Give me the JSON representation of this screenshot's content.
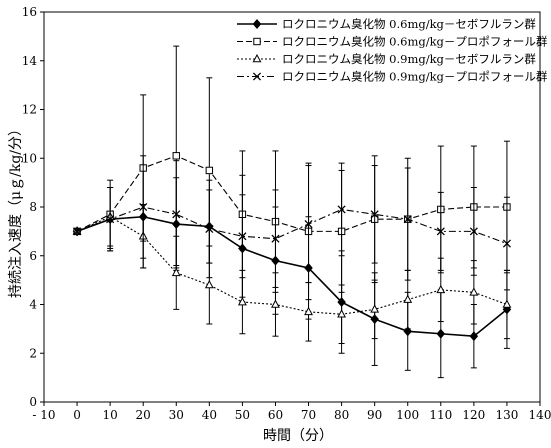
{
  "chart_data": {
    "type": "line",
    "xlabel": "時間（分）",
    "ylabel": "持続注入速度（μｇ/kg/分）",
    "xlim": [
      -10,
      140
    ],
    "ylim": [
      0,
      16
    ],
    "xticks": [
      -10,
      0,
      10,
      20,
      30,
      40,
      50,
      60,
      70,
      80,
      90,
      100,
      110,
      120,
      130,
      140
    ],
    "yticks": [
      0,
      2,
      4,
      6,
      8,
      10,
      12,
      14,
      16
    ],
    "x": [
      0,
      10,
      20,
      30,
      40,
      50,
      60,
      70,
      80,
      90,
      100,
      110,
      120,
      130
    ],
    "legend_position": "top-right",
    "series": [
      {
        "name": "ロクロニウム臭化物 0.6mg/kg－セボフルラン群",
        "marker": "diamond",
        "line": "solid",
        "x": [
          0,
          10,
          20,
          30,
          40,
          50,
          60,
          70,
          80,
          90,
          100,
          110,
          120,
          130
        ],
        "values": [
          7.0,
          7.5,
          7.6,
          7.3,
          7.2,
          6.3,
          5.8,
          5.5,
          4.1,
          3.4,
          2.9,
          2.8,
          2.7,
          3.8
        ],
        "err": [
          0.1,
          1.3,
          2.1,
          1.9,
          1.5,
          2.2,
          2.2,
          2.1,
          2.1,
          1.9,
          1.6,
          1.8,
          1.3,
          1.6
        ]
      },
      {
        "name": "ロクロニウム臭化物 0.6mg/kg－プロポフォール群",
        "marker": "square",
        "line": "dashed",
        "x": [
          0,
          10,
          20,
          30,
          40,
          50,
          60,
          70,
          80,
          90,
          100,
          110,
          120,
          130
        ],
        "values": [
          7.0,
          7.7,
          9.6,
          10.1,
          9.5,
          7.7,
          7.4,
          7.0,
          7.0,
          7.5,
          7.5,
          7.9,
          8.0,
          8.0
        ],
        "err": [
          0.1,
          1.4,
          3.0,
          4.5,
          3.8,
          2.6,
          2.9,
          2.8,
          2.5,
          2.6,
          2.5,
          2.6,
          2.5,
          2.7
        ]
      },
      {
        "name": "ロクロニウム臭化物 0.9mg/kg－セボフルラン群",
        "marker": "triangle",
        "line": "dotted",
        "x": [
          0,
          10,
          20,
          30,
          40,
          50,
          60,
          70,
          80,
          90,
          100,
          110,
          120,
          130
        ],
        "values": [
          7.0,
          7.6,
          6.8,
          5.3,
          4.8,
          4.1,
          4.0,
          3.7,
          3.6,
          3.8,
          4.2,
          4.6,
          4.5,
          4.0
        ],
        "err": [
          0.1,
          1.2,
          1.3,
          1.5,
          1.6,
          1.3,
          1.3,
          1.2,
          1.2,
          1.2,
          1.2,
          1.3,
          1.3,
          1.4
        ]
      },
      {
        "name": "ロクロニウム臭化物 0.9mg/kg－プロポフォール群",
        "marker": "cross",
        "line": "dashdot",
        "x": [
          0,
          10,
          20,
          30,
          40,
          50,
          60,
          70,
          80,
          90,
          100,
          110,
          120,
          130
        ],
        "values": [
          7.0,
          7.5,
          8.0,
          7.7,
          7.1,
          6.8,
          6.7,
          7.3,
          7.9,
          7.7,
          7.5,
          7.0,
          7.0,
          6.5
        ],
        "err": [
          0.1,
          1.3,
          2.1,
          2.2,
          2.0,
          2.5,
          2.0,
          2.4,
          1.9,
          2.0,
          2.1,
          1.6,
          1.8,
          1.9
        ]
      }
    ]
  }
}
